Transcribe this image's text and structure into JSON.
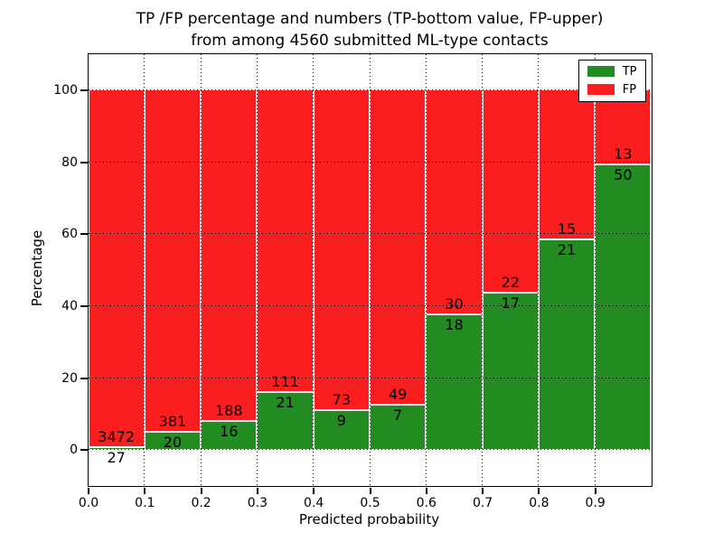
{
  "chart_data": {
    "type": "bar",
    "variant": "stacked-percentage",
    "title_line1": "TP /FP percentage and numbers (TP-bottom value, FP-upper)",
    "title_line2": "from among 4560 submitted ML-type contacts",
    "xlabel": "Predicted probability",
    "ylabel": "Percentage",
    "xlim": [
      0.0,
      1.0
    ],
    "ylim": [
      -10,
      110
    ],
    "yticks": [
      0,
      20,
      40,
      60,
      80,
      100
    ],
    "xtick_labels": [
      "0.0",
      "0.1",
      "0.2",
      "0.3",
      "0.4",
      "0.5",
      "0.6",
      "0.7",
      "0.8",
      "0.9"
    ],
    "bins": [
      "0.0-0.1",
      "0.1-0.2",
      "0.2-0.3",
      "0.3-0.4",
      "0.4-0.5",
      "0.5-0.6",
      "0.6-0.7",
      "0.7-0.8",
      "0.8-0.9",
      "0.9-1.0"
    ],
    "grid": {
      "style": "dotted",
      "color": "#000000",
      "drawn_over_bars": true
    },
    "bar_edge_color": "#ffffff",
    "series": [
      {
        "name": "TP",
        "color": "#228b22",
        "counts": [
          27,
          20,
          16,
          21,
          9,
          7,
          18,
          17,
          21,
          50
        ]
      },
      {
        "name": "FP",
        "color": "#fb1e1e",
        "counts": [
          3472,
          381,
          188,
          111,
          73,
          49,
          30,
          22,
          15,
          13
        ]
      }
    ],
    "tp_percent_heights": [
      0.8,
      5.0,
      7.8,
      15.9,
      11.0,
      12.5,
      37.5,
      43.6,
      58.3,
      79.4
    ],
    "legend": {
      "position": "upper-right",
      "entries": [
        {
          "label": "TP",
          "color": "#228b22"
        },
        {
          "label": "FP",
          "color": "#fb1e1e"
        }
      ]
    }
  }
}
